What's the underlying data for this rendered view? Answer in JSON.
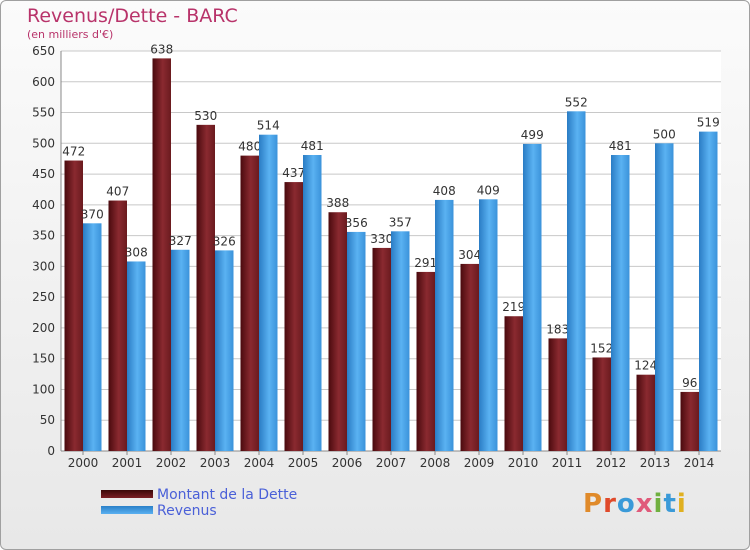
{
  "chart_data": {
    "type": "bar",
    "title": "Revenus/Dette - BARC",
    "subtitle": "(en milliers d'€)",
    "categories": [
      "2000",
      "2001",
      "2002",
      "2003",
      "2004",
      "2005",
      "2006",
      "2007",
      "2008",
      "2009",
      "2010",
      "2011",
      "2012",
      "2013",
      "2014"
    ],
    "series": [
      {
        "name": "Montant de la Dette",
        "values": [
          472,
          407,
          638,
          530,
          480,
          437,
          388,
          330,
          291,
          304,
          219,
          183,
          152,
          124,
          96
        ],
        "color": "#7a1e24"
      },
      {
        "name": "Revenus",
        "values": [
          370,
          308,
          327,
          326,
          514,
          481,
          356,
          357,
          408,
          409,
          499,
          552,
          481,
          500,
          519
        ],
        "color": "#4aa0e0"
      }
    ],
    "ylim": [
      0,
      650
    ],
    "yticks": [
      0,
      50,
      100,
      150,
      200,
      250,
      300,
      350,
      400,
      450,
      500,
      550,
      600,
      650
    ],
    "grid": true,
    "legend_position": "bottom-left"
  },
  "logo": {
    "text": "Proxiti",
    "colors": [
      "#e08a2a",
      "#e04a2a",
      "#3a9ad8",
      "#e05a7a",
      "#70b040",
      "#3a9ad8",
      "#e0b020"
    ]
  }
}
